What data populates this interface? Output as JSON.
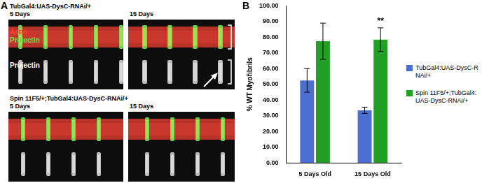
{
  "panel_a": {
    "label": "A",
    "rows": [
      {
        "genotype": "TubGal4:UAS-DysC-RNAi/+",
        "images": [
          {
            "time": "5 Days",
            "channel_labels": [
              "Actin",
              "Projectin",
              "Projectin"
            ]
          },
          {
            "time": "15 Days"
          }
        ]
      },
      {
        "genotype": "Spin 11F5/+;TubGal4:UAS-DysC-RNAi/+",
        "images": [
          {
            "time": "5 Days"
          },
          {
            "time": "15 Days"
          }
        ]
      }
    ]
  },
  "panel_b": {
    "label": "B"
  },
  "chart_data": {
    "type": "bar",
    "y_label": "% WT Myofibrils",
    "categories": [
      "5 Days Old",
      "15 Days Old"
    ],
    "series": [
      {
        "name": "TubGal4:UAS-DysC-RNAi/+",
        "color": "#4a6fd0",
        "values": [
          52.5,
          33.5
        ],
        "errors": [
          7.5,
          2
        ]
      },
      {
        "name": "Spin 11F5/+;TubGal4:UAS-DysC-RNAi/+",
        "color": "#22a024",
        "values": [
          77.5,
          78.5
        ],
        "errors": [
          11.5,
          7.5
        ]
      }
    ],
    "annotations": [
      {
        "text": "**",
        "category": "15 Days Old",
        "series": "Spin 11F5/+;TubGal4:UAS-DysC-RNAi/+"
      }
    ],
    "ylim": [
      0,
      100
    ],
    "yticks": [
      {
        "value": 0,
        "label": "0.00"
      },
      {
        "value": 10,
        "label": "10.00"
      },
      {
        "value": 20,
        "label": "20.00"
      },
      {
        "value": 30,
        "label": "30.00"
      },
      {
        "value": 40,
        "label": "40.00"
      },
      {
        "value": 50,
        "label": "50.00"
      },
      {
        "value": 60,
        "label": "60.00"
      },
      {
        "value": 70,
        "label": "70.00"
      },
      {
        "value": 80,
        "label": "80.00"
      },
      {
        "value": 90,
        "label": "90.00"
      },
      {
        "value": 100,
        "label": "100.00"
      }
    ],
    "grid": false,
    "legend": "right"
  }
}
